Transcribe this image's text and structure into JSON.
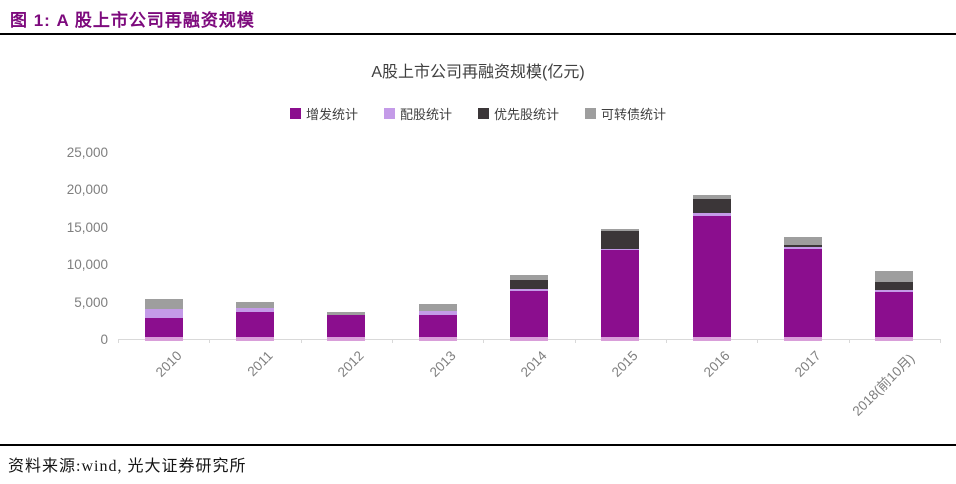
{
  "header": {
    "title": "图 1: A 股上市公司再融资规模",
    "accent_color": "#7D0A7D"
  },
  "chart": {
    "title": "A股上市公司再融资规模(亿元)",
    "y_tick_labels": [
      "0",
      "5,000",
      "10,000",
      "15,000",
      "20,000",
      "25,000"
    ]
  },
  "chart_data": {
    "type": "bar",
    "stacked": true,
    "title": "A股上市公司再融资规模(亿元)",
    "xlabel": "",
    "ylabel": "亿元",
    "ylim": [
      0,
      25000
    ],
    "y_tick_interval": 5000,
    "grid": false,
    "legend_position": "top",
    "categories": [
      "2010",
      "2011",
      "2012",
      "2013",
      "2014",
      "2015",
      "2016",
      "2017",
      "2018(前10月)"
    ],
    "series": [
      {
        "name": "增发统计",
        "color": "#8B0E8E",
        "values": [
          2800,
          3650,
          3150,
          3250,
          6400,
          11900,
          16500,
          12000,
          6300
        ]
      },
      {
        "name": "配股统计",
        "color": "#C49BE8",
        "values": [
          1250,
          500,
          100,
          500,
          300,
          150,
          400,
          300,
          300
        ]
      },
      {
        "name": "优先股统计",
        "color": "#3B3638",
        "values": [
          0,
          0,
          0,
          0,
          1200,
          2350,
          1800,
          300,
          1000
        ]
      },
      {
        "name": "可转债统计",
        "color": "#9E9E9E",
        "values": [
          1300,
          750,
          350,
          1000,
          700,
          350,
          500,
          1000,
          1450
        ]
      }
    ]
  },
  "footer": {
    "source": "资料来源:wind, 光大证券研究所"
  }
}
